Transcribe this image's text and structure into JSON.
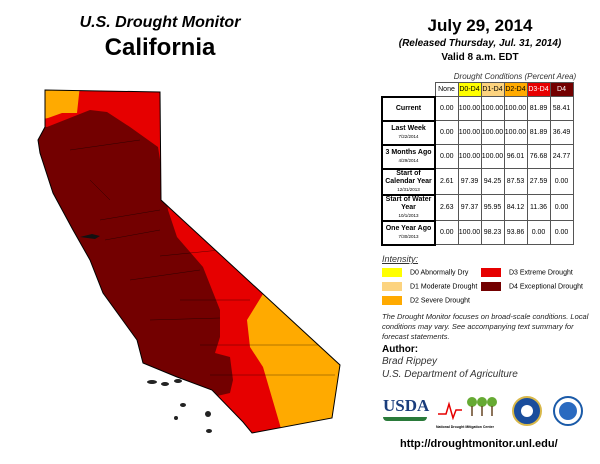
{
  "header": {
    "title": "U.S. Drought Monitor",
    "state": "California",
    "date": "July 29, 2014",
    "released": "(Released Thursday, Jul. 31, 2014)",
    "valid": "Valid 8 a.m. EDT"
  },
  "table": {
    "caption": "Drought Conditions (Percent Area)",
    "columns": [
      {
        "label": "None",
        "color": "#ffffff"
      },
      {
        "label": "D0-D4",
        "color": "#ffff00"
      },
      {
        "label": "D1-D4",
        "color": "#fcd37f"
      },
      {
        "label": "D2-D4",
        "color": "#ffaa00"
      },
      {
        "label": "D3-D4",
        "color": "#e60000"
      },
      {
        "label": "D4",
        "color": "#730000"
      }
    ],
    "rows": [
      {
        "label": "Current",
        "date": "",
        "values": [
          "0.00",
          "100.00",
          "100.00",
          "100.00",
          "81.89",
          "58.41"
        ]
      },
      {
        "label": "Last Week",
        "date": "7/22/2014",
        "values": [
          "0.00",
          "100.00",
          "100.00",
          "100.00",
          "81.89",
          "36.49"
        ]
      },
      {
        "label": "3 Months Ago",
        "date": "4/29/2014",
        "values": [
          "0.00",
          "100.00",
          "100.00",
          "96.01",
          "76.68",
          "24.77"
        ]
      },
      {
        "label": "Start of Calendar Year",
        "date": "12/31/2013",
        "values": [
          "2.61",
          "97.39",
          "94.25",
          "87.53",
          "27.59",
          "0.00"
        ]
      },
      {
        "label": "Start of Water Year",
        "date": "10/1/2013",
        "values": [
          "2.63",
          "97.37",
          "95.95",
          "84.12",
          "11.36",
          "0.00"
        ]
      },
      {
        "label": "One Year Ago",
        "date": "7/30/2013",
        "values": [
          "0.00",
          "100.00",
          "98.23",
          "93.86",
          "0.00",
          "0.00"
        ]
      }
    ]
  },
  "legend": {
    "title": "Intensity:",
    "items": [
      {
        "label": "D0 Abnormally Dry",
        "color": "#ffff00"
      },
      {
        "label": "D1 Moderate Drought",
        "color": "#fcd37f"
      },
      {
        "label": "D2 Severe Drought",
        "color": "#ffaa00"
      },
      {
        "label": "D3 Extreme Drought",
        "color": "#e60000"
      },
      {
        "label": "D4 Exceptional Drought",
        "color": "#730000"
      }
    ]
  },
  "note": "The Drought Monitor focuses on broad-scale conditions. Local conditions may vary. See accompanying text summary for forecast statements.",
  "author": {
    "heading": "Author:",
    "name": "Brad Rippey",
    "org": "U.S. Department of Agriculture"
  },
  "logos": {
    "usda": "USDA",
    "ndmc": "National Drought Mitigation Center"
  },
  "url": "http://droughtmonitor.unl.edu/"
}
